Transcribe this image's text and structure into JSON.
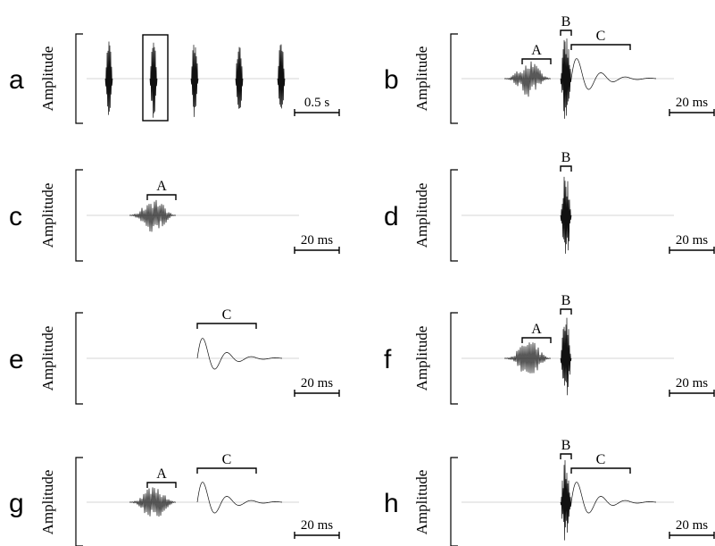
{
  "chart_data": [
    {
      "panel": "a",
      "type": "line",
      "ylabel": "Amplitude",
      "scale_bar": "0.5 s",
      "pulse_trains": 5,
      "selected_train": 2,
      "components": []
    },
    {
      "panel": "b",
      "type": "line",
      "ylabel": "Amplitude",
      "scale_bar": "20 ms",
      "components": [
        "A",
        "B",
        "C"
      ]
    },
    {
      "panel": "c",
      "type": "line",
      "ylabel": "Amplitude",
      "scale_bar": "20 ms",
      "components": [
        "A"
      ]
    },
    {
      "panel": "d",
      "type": "line",
      "ylabel": "Amplitude",
      "scale_bar": "20 ms",
      "components": [
        "B"
      ]
    },
    {
      "panel": "e",
      "type": "line",
      "ylabel": "Amplitude",
      "scale_bar": "20 ms",
      "components": [
        "C"
      ]
    },
    {
      "panel": "f",
      "type": "line",
      "ylabel": "Amplitude",
      "scale_bar": "20 ms",
      "components": [
        "A",
        "B"
      ]
    },
    {
      "panel": "g",
      "type": "line",
      "ylabel": "Amplitude",
      "scale_bar": "20 ms",
      "components": [
        "A",
        "C"
      ]
    },
    {
      "panel": "h",
      "type": "line",
      "ylabel": "Amplitude",
      "scale_bar": "20 ms",
      "components": [
        "B",
        "C"
      ]
    }
  ]
}
